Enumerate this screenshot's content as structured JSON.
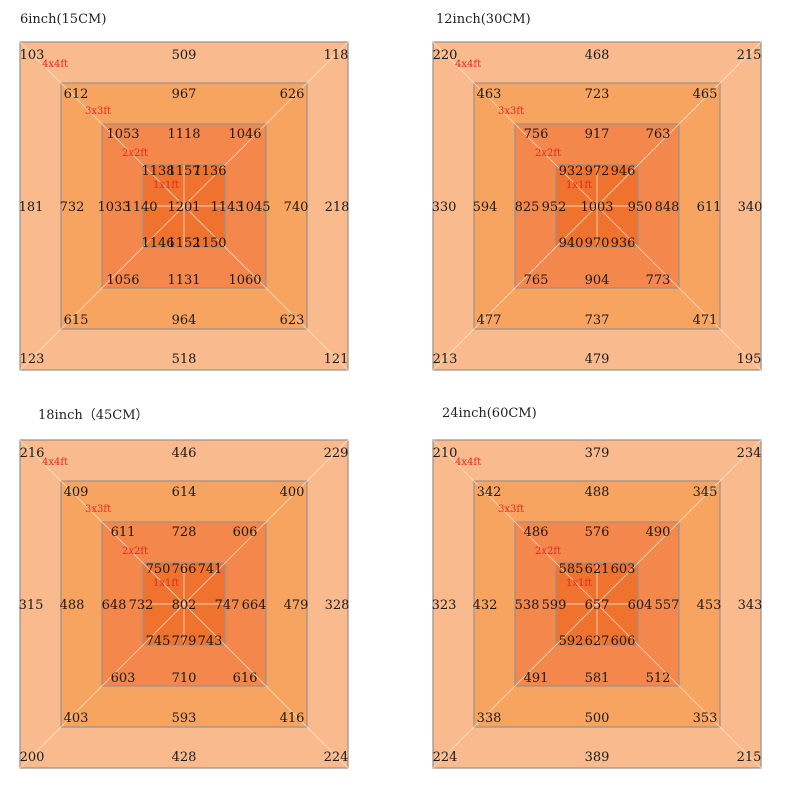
{
  "colors": {
    "ring4": "#f9bb8d",
    "ring3": "#f8a461",
    "ring2": "#f3874c",
    "ring1": "#ef722f",
    "border": "#9a8f8a",
    "diag": "#fde2c8",
    "zone_label": "#e8281c"
  },
  "panels": [
    {
      "title": "6inch(15CM)",
      "zones": [
        "4x4ft",
        "3x3ft",
        "2x2ft",
        "1x1ft"
      ],
      "rings": {
        "r4": {
          "tl": "103",
          "tc": "509",
          "tr": "118",
          "ml": "181",
          "mr": "218",
          "bl": "123",
          "bc": "518",
          "br": "121"
        },
        "r3": {
          "tl": "612",
          "tc": "967",
          "tr": "626",
          "ml": "732",
          "mr": "740",
          "bl": "615",
          "bc": "964",
          "br": "623"
        },
        "r2": {
          "tl": "1053",
          "tc": "1118",
          "tr": "1046",
          "ml": "1033",
          "mr": "1045",
          "bl": "1056",
          "bc": "1131",
          "br": "1060"
        },
        "r1": {
          "tl": "1138",
          "tc": "1157",
          "tr": "1136",
          "ml": "1140",
          "mr": "1143",
          "bl": "1146",
          "bc": "1152",
          "br": "1150"
        }
      },
      "center": "1201"
    },
    {
      "title": "12inch(30CM)",
      "zones": [
        "4x4ft",
        "3x3ft",
        "2x2ft",
        "1x1ft"
      ],
      "rings": {
        "r4": {
          "tl": "220",
          "tc": "468",
          "tr": "215",
          "ml": "330",
          "mr": "340",
          "bl": "213",
          "bc": "479",
          "br": "195"
        },
        "r3": {
          "tl": "463",
          "tc": "723",
          "tr": "465",
          "ml": "594",
          "mr": "611",
          "bl": "477",
          "bc": "737",
          "br": "471"
        },
        "r2": {
          "tl": "756",
          "tc": "917",
          "tr": "763",
          "ml": "825",
          "mr": "848",
          "bl": "765",
          "bc": "904",
          "br": "773"
        },
        "r1": {
          "tl": "932",
          "tc": "972",
          "tr": "946",
          "ml": "952",
          "mr": "950",
          "bl": "940",
          "bc": "970",
          "br": "936"
        }
      },
      "center": "1003"
    },
    {
      "title": "18inch（45CM）",
      "zones": [
        "4x4ft",
        "3x3ft",
        "2x2ft",
        "1x1ft"
      ],
      "rings": {
        "r4": {
          "tl": "216",
          "tc": "446",
          "tr": "229",
          "ml": "315",
          "mr": "328",
          "bl": "200",
          "bc": "428",
          "br": "224"
        },
        "r3": {
          "tl": "409",
          "tc": "614",
          "tr": "400",
          "ml": "488",
          "mr": "479",
          "bl": "403",
          "bc": "593",
          "br": "416"
        },
        "r2": {
          "tl": "611",
          "tc": "728",
          "tr": "606",
          "ml": "648",
          "mr": "664",
          "bl": "603",
          "bc": "710",
          "br": "616"
        },
        "r1": {
          "tl": "750",
          "tc": "766",
          "tr": "741",
          "ml": "732",
          "mr": "747",
          "bl": "745",
          "bc": "779",
          "br": "743"
        }
      },
      "center": "802"
    },
    {
      "title": "24inch(60CM)",
      "zones": [
        "4x4ft",
        "3x3ft",
        "2x2ft",
        "1x1ft"
      ],
      "rings": {
        "r4": {
          "tl": "210",
          "tc": "379",
          "tr": "234",
          "ml": "323",
          "mr": "343",
          "bl": "224",
          "bc": "389",
          "br": "215"
        },
        "r3": {
          "tl": "342",
          "tc": "488",
          "tr": "345",
          "ml": "432",
          "mr": "453",
          "bl": "338",
          "bc": "500",
          "br": "353"
        },
        "r2": {
          "tl": "486",
          "tc": "576",
          "tr": "490",
          "ml": "538",
          "mr": "557",
          "bl": "491",
          "bc": "581",
          "br": "512"
        },
        "r1": {
          "tl": "585",
          "tc": "621",
          "tr": "603",
          "ml": "599",
          "mr": "604",
          "bl": "592",
          "bc": "627",
          "br": "606"
        }
      },
      "center": "657"
    }
  ]
}
